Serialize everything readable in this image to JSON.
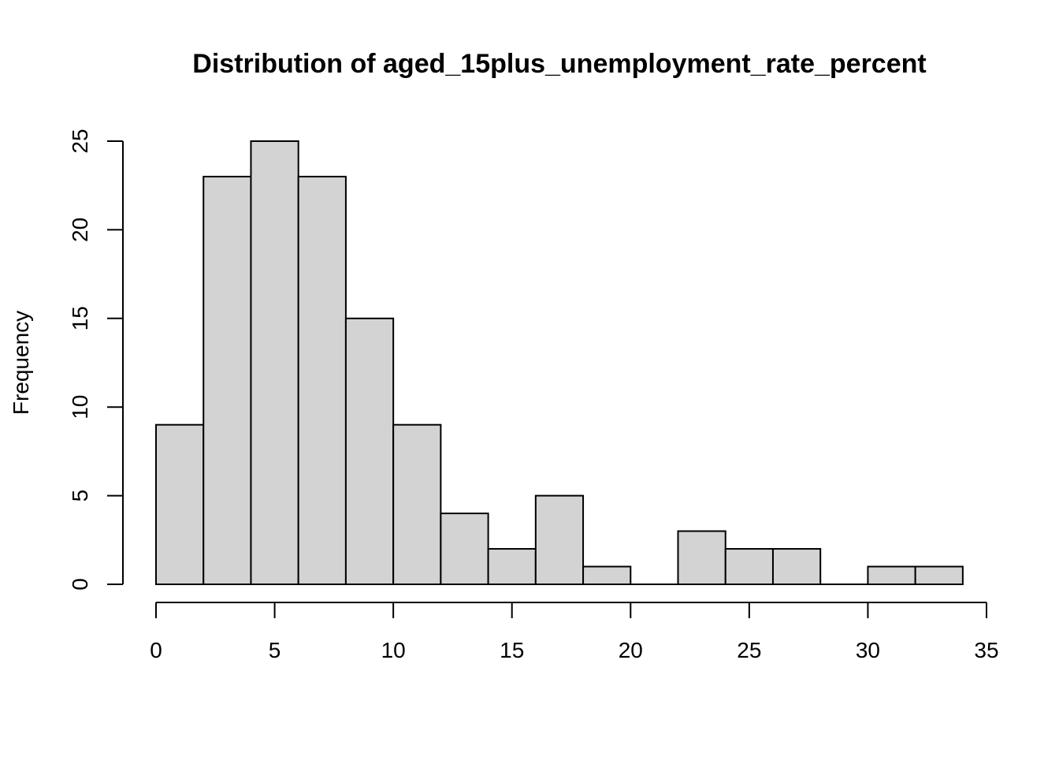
{
  "chart_data": {
    "type": "bar",
    "title": "Distribution of aged_15plus_unemployment_rate_percent",
    "xlabel": "",
    "ylabel": "Frequency",
    "bin_edges": [
      0,
      2,
      4,
      6,
      8,
      10,
      12,
      14,
      16,
      18,
      20,
      22,
      24,
      26,
      28,
      30,
      32,
      34
    ],
    "values": [
      9,
      23,
      25,
      23,
      15,
      9,
      4,
      2,
      5,
      1,
      0,
      3,
      2,
      2,
      0,
      1,
      1
    ],
    "xlim": [
      0,
      35
    ],
    "ylim": [
      0,
      25
    ],
    "x_ticks": [
      0,
      5,
      10,
      15,
      20,
      25,
      30,
      35
    ],
    "y_ticks": [
      0,
      5,
      10,
      15,
      20,
      25
    ],
    "bar_color": "#d3d3d3",
    "bar_stroke": "#000000",
    "grid": false,
    "legend": "none"
  }
}
